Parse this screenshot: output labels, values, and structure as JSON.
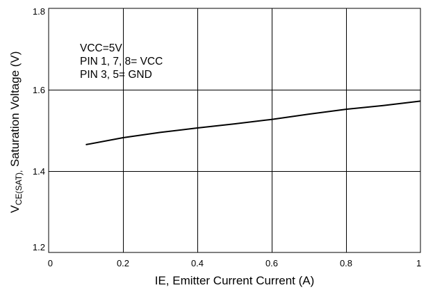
{
  "chart_data": {
    "type": "line",
    "xlabel": "IE, Emitter Current Current (A)",
    "ylabel": {
      "prefix": "V",
      "subscript": "CE(SAT),",
      "suffix": " Saturation Voltage (V)"
    },
    "xlim": [
      0,
      1
    ],
    "ylim": [
      1.2,
      1.8
    ],
    "x_ticks": [
      {
        "value": 0,
        "label": "0"
      },
      {
        "value": 0.2,
        "label": "0.2"
      },
      {
        "value": 0.4,
        "label": "0.4"
      },
      {
        "value": 0.6,
        "label": "0.6"
      },
      {
        "value": 0.8,
        "label": "0.8"
      },
      {
        "value": 1,
        "label": "1"
      }
    ],
    "y_ticks": [
      {
        "value": 1.2,
        "label": "1.2"
      },
      {
        "value": 1.4,
        "label": "1.4"
      },
      {
        "value": 1.6,
        "label": "1.6"
      },
      {
        "value": 1.8,
        "label": "1.8"
      }
    ],
    "grid": true,
    "annotations": [
      "VCC=5V",
      "PIN 1, 7, 8= VCC",
      "PIN 3, 5= GND"
    ],
    "series": [
      {
        "x": [
          0.1,
          0.2,
          0.3,
          0.4,
          0.5,
          0.6,
          0.7,
          0.8,
          0.9,
          1.0
        ],
        "y": [
          1.465,
          1.482,
          1.495,
          1.506,
          1.516,
          1.527,
          1.54,
          1.552,
          1.561,
          1.572
        ]
      }
    ],
    "colors": {
      "line": "#000000",
      "grid": "#000000",
      "background": "#ffffff"
    }
  }
}
